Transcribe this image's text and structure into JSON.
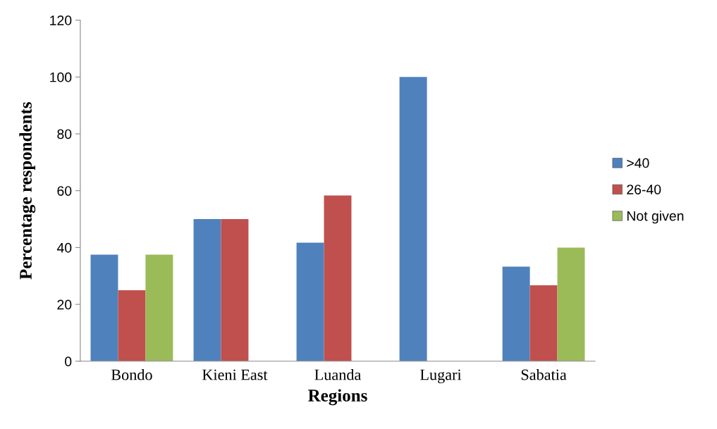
{
  "chart_data": {
    "type": "bar",
    "xlabel": "Regions",
    "ylabel": "Percentage respondents",
    "categories": [
      "Bondo",
      "Kieni East",
      "Luanda",
      "Lugari",
      "Sabatia"
    ],
    "series": [
      {
        "name": ">40",
        "color": "#4f81bd",
        "values": [
          37.5,
          50,
          41.7,
          100,
          33.3
        ]
      },
      {
        "name": "26-40",
        "color": "#c0504d",
        "values": [
          25,
          50,
          58.3,
          null,
          26.7
        ]
      },
      {
        "name": "Not given",
        "color": "#9bbb59",
        "values": [
          37.5,
          null,
          null,
          null,
          40
        ]
      }
    ],
    "ylim": [
      0,
      120
    ],
    "yticks": [
      0,
      20,
      40,
      60,
      80,
      100,
      120
    ],
    "grid": false,
    "legend": "right"
  }
}
